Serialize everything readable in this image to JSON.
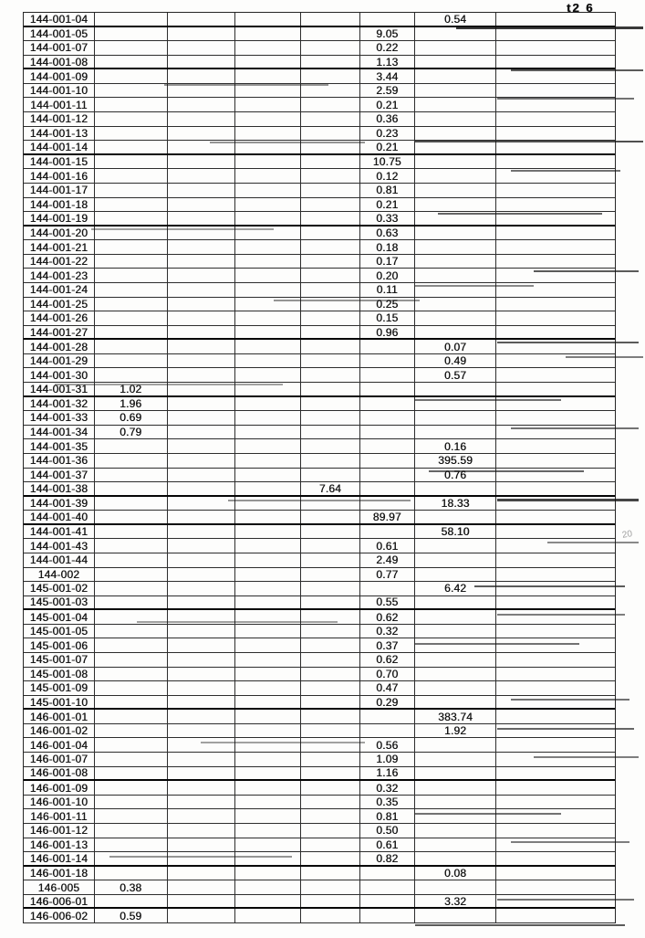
{
  "page": {
    "header_mark": "t2 6",
    "margin_mark": "20"
  },
  "table": {
    "num_columns": 8,
    "rows": [
      {
        "cells": [
          "144-001-04",
          "",
          "",
          "",
          "",
          "",
          "0.54",
          ""
        ]
      },
      {
        "cells": [
          "144-001-05",
          "",
          "",
          "",
          "",
          "9.05",
          "",
          ""
        ]
      },
      {
        "cells": [
          "144-001-07",
          "",
          "",
          "",
          "",
          "0.22",
          "",
          ""
        ]
      },
      {
        "cells": [
          "144-001-08",
          "",
          "",
          "",
          "",
          "1.13",
          "",
          ""
        ]
      },
      {
        "cells": [
          "144-001-09",
          "",
          "",
          "",
          "",
          "3.44",
          "",
          ""
        ]
      },
      {
        "cells": [
          "144-001-10",
          "",
          "",
          "",
          "",
          "2.59",
          "",
          ""
        ]
      },
      {
        "cells": [
          "144-001-11",
          "",
          "",
          "",
          "",
          "0.21",
          "",
          ""
        ]
      },
      {
        "cells": [
          "144-001-12",
          "",
          "",
          "",
          "",
          "0.36",
          "",
          ""
        ]
      },
      {
        "cells": [
          "144-001-13",
          "",
          "",
          "",
          "",
          "0.23",
          "",
          ""
        ]
      },
      {
        "cells": [
          "144-001-14",
          "",
          "",
          "",
          "",
          "0.21",
          "",
          ""
        ]
      },
      {
        "cells": [
          "144-001-15",
          "",
          "",
          "",
          "",
          "10.75",
          "",
          ""
        ]
      },
      {
        "cells": [
          "144-001-16",
          "",
          "",
          "",
          "",
          "0.12",
          "",
          ""
        ]
      },
      {
        "cells": [
          "144-001-17",
          "",
          "",
          "",
          "",
          "0.81",
          "",
          ""
        ]
      },
      {
        "cells": [
          "144-001-18",
          "",
          "",
          "",
          "",
          "0.21",
          "",
          ""
        ]
      },
      {
        "cells": [
          "144-001-19",
          "",
          "",
          "",
          "",
          "0.33",
          "",
          ""
        ]
      },
      {
        "cells": [
          "144-001-20",
          "",
          "",
          "",
          "",
          "0.63",
          "",
          ""
        ]
      },
      {
        "cells": [
          "144-001-21",
          "",
          "",
          "",
          "",
          "0.18",
          "",
          ""
        ]
      },
      {
        "cells": [
          "144-001-22",
          "",
          "",
          "",
          "",
          "0.17",
          "",
          ""
        ]
      },
      {
        "cells": [
          "144-001-23",
          "",
          "",
          "",
          "",
          "0.20",
          "",
          ""
        ]
      },
      {
        "cells": [
          "144-001-24",
          "",
          "",
          "",
          "",
          "0.11",
          "",
          ""
        ]
      },
      {
        "cells": [
          "144-001-25",
          "",
          "",
          "",
          "",
          "0.25",
          "",
          ""
        ]
      },
      {
        "cells": [
          "144-001-26",
          "",
          "",
          "",
          "",
          "0.15",
          "",
          ""
        ]
      },
      {
        "cells": [
          "144-001-27",
          "",
          "",
          "",
          "",
          "0.96",
          "",
          ""
        ]
      },
      {
        "cells": [
          "144-001-28",
          "",
          "",
          "",
          "",
          "",
          "0.07",
          ""
        ]
      },
      {
        "cells": [
          "144-001-29",
          "",
          "",
          "",
          "",
          "",
          "0.49",
          ""
        ]
      },
      {
        "cells": [
          "144-001-30",
          "",
          "",
          "",
          "",
          "",
          "0.57",
          ""
        ]
      },
      {
        "cells": [
          "144-001-31",
          "1.02",
          "",
          "",
          "",
          "",
          "",
          ""
        ]
      },
      {
        "cells": [
          "144-001-32",
          "1.96",
          "",
          "",
          "",
          "",
          "",
          ""
        ]
      },
      {
        "cells": [
          "144-001-33",
          "0.69",
          "",
          "",
          "",
          "",
          "",
          ""
        ]
      },
      {
        "cells": [
          "144-001-34",
          "0.79",
          "",
          "",
          "",
          "",
          "",
          ""
        ]
      },
      {
        "cells": [
          "144-001-35",
          "",
          "",
          "",
          "",
          "",
          "0.16",
          ""
        ]
      },
      {
        "cells": [
          "144-001-36",
          "",
          "",
          "",
          "",
          "",
          "395.59",
          ""
        ]
      },
      {
        "cells": [
          "144-001-37",
          "",
          "",
          "",
          "",
          "",
          "0.76",
          ""
        ]
      },
      {
        "cells": [
          "144-001-38",
          "",
          "",
          "",
          "7.64",
          "",
          "",
          ""
        ]
      },
      {
        "cells": [
          "144-001-39",
          "",
          "",
          "",
          "",
          "",
          "18.33",
          ""
        ]
      },
      {
        "cells": [
          "144-001-40",
          "",
          "",
          "",
          "",
          "89.97",
          "",
          ""
        ]
      },
      {
        "cells": [
          "144-001-41",
          "",
          "",
          "",
          "",
          "",
          "58.10",
          ""
        ]
      },
      {
        "cells": [
          "144-001-43",
          "",
          "",
          "",
          "",
          "0.61",
          "",
          ""
        ]
      },
      {
        "cells": [
          "144-001-44",
          "",
          "",
          "",
          "",
          "2.49",
          "",
          ""
        ]
      },
      {
        "cells": [
          "144-002",
          "",
          "",
          "",
          "",
          "0.77",
          "",
          ""
        ]
      },
      {
        "cells": [
          "145-001-02",
          "",
          "",
          "",
          "",
          "",
          "6.42",
          ""
        ]
      },
      {
        "cells": [
          "145-001-03",
          "",
          "",
          "",
          "",
          "0.55",
          "",
          ""
        ]
      },
      {
        "cells": [
          "145-001-04",
          "",
          "",
          "",
          "",
          "0.62",
          "",
          ""
        ]
      },
      {
        "cells": [
          "145-001-05",
          "",
          "",
          "",
          "",
          "0.32",
          "",
          ""
        ]
      },
      {
        "cells": [
          "145-001-06",
          "",
          "",
          "",
          "",
          "0.37",
          "",
          ""
        ]
      },
      {
        "cells": [
          "145-001-07",
          "",
          "",
          "",
          "",
          "0.62",
          "",
          ""
        ]
      },
      {
        "cells": [
          "145-001-08",
          "",
          "",
          "",
          "",
          "0.70",
          "",
          ""
        ]
      },
      {
        "cells": [
          "145-001-09",
          "",
          "",
          "",
          "",
          "0.47",
          "",
          ""
        ]
      },
      {
        "cells": [
          "145-001-10",
          "",
          "",
          "",
          "",
          "0.29",
          "",
          ""
        ]
      },
      {
        "cells": [
          "146-001-01",
          "",
          "",
          "",
          "",
          "",
          "383.74",
          ""
        ]
      },
      {
        "cells": [
          "146-001-02",
          "",
          "",
          "",
          "",
          "",
          "1.92",
          ""
        ]
      },
      {
        "cells": [
          "146-001-04",
          "",
          "",
          "",
          "",
          "0.56",
          "",
          ""
        ]
      },
      {
        "cells": [
          "146-001-07",
          "",
          "",
          "",
          "",
          "1.09",
          "",
          ""
        ]
      },
      {
        "cells": [
          "146-001-08",
          "",
          "",
          "",
          "",
          "1.16",
          "",
          ""
        ]
      },
      {
        "cells": [
          "146-001-09",
          "",
          "",
          "",
          "",
          "0.32",
          "",
          ""
        ]
      },
      {
        "cells": [
          "146-001-10",
          "",
          "",
          "",
          "",
          "0.35",
          "",
          ""
        ]
      },
      {
        "cells": [
          "146-001-11",
          "",
          "",
          "",
          "",
          "0.81",
          "",
          ""
        ]
      },
      {
        "cells": [
          "146-001-12",
          "",
          "",
          "",
          "",
          "0.50",
          "",
          ""
        ]
      },
      {
        "cells": [
          "146-001-13",
          "",
          "",
          "",
          "",
          "0.61",
          "",
          ""
        ]
      },
      {
        "cells": [
          "146-001-14",
          "",
          "",
          "",
          "",
          "0.82",
          "",
          ""
        ]
      },
      {
        "cells": [
          "146-001-18",
          "",
          "",
          "",
          "",
          "",
          "0.08",
          ""
        ]
      },
      {
        "cells": [
          "146-005",
          "0.38",
          "",
          "",
          "",
          "",
          "",
          ""
        ]
      },
      {
        "cells": [
          "146-006-01",
          "",
          "",
          "",
          "",
          "",
          "3.32",
          ""
        ]
      },
      {
        "cells": [
          "146-006-02",
          "0.59",
          "",
          "",
          "",
          "",
          "",
          ""
        ]
      }
    ]
  }
}
